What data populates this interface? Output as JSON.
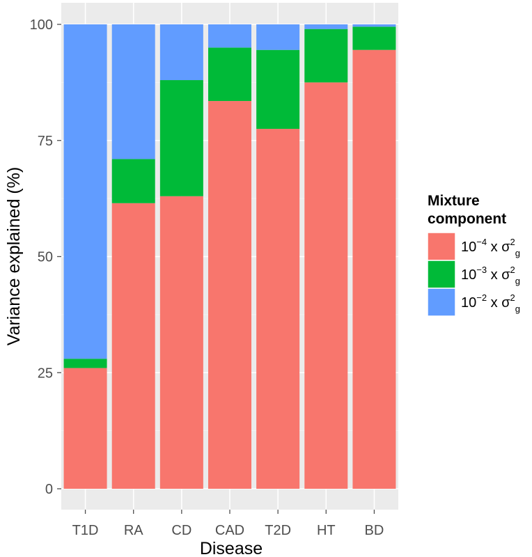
{
  "chart_data": {
    "type": "bar",
    "stacked": true,
    "xlabel": "Disease",
    "ylabel": "Variance explained (%)",
    "ylim": [
      0,
      100
    ],
    "yticks": [
      0,
      25,
      50,
      75,
      100
    ],
    "categories": [
      "T1D",
      "RA",
      "CD",
      "CAD",
      "T2D",
      "HT",
      "BD"
    ],
    "series": [
      {
        "name": "10^-4 x σ²g",
        "base": "10",
        "exp": "−4",
        "sym": "σ",
        "sup": "2",
        "sub": "g",
        "color": "#F8766D",
        "values": [
          26,
          61.5,
          63,
          83.5,
          77.5,
          87.5,
          94.5
        ]
      },
      {
        "name": "10^-3 x σ²g",
        "base": "10",
        "exp": "−3",
        "sym": "σ",
        "sup": "2",
        "sub": "g",
        "color": "#00BA38",
        "values": [
          2,
          9.5,
          25,
          11.5,
          17,
          11.5,
          5
        ]
      },
      {
        "name": "10^-2 x σ²g",
        "base": "10",
        "exp": "−2",
        "sym": "σ",
        "sup": "2",
        "sub": "g",
        "color": "#619CFF",
        "values": [
          72,
          29,
          12,
          5,
          5.5,
          1,
          0.5
        ]
      }
    ],
    "legend": {
      "title_line1": "Mixture",
      "title_line2": "component",
      "position": "right"
    },
    "grid": true,
    "panel_background": "#EBEBEB",
    "grid_color": "#FFFFFF"
  }
}
